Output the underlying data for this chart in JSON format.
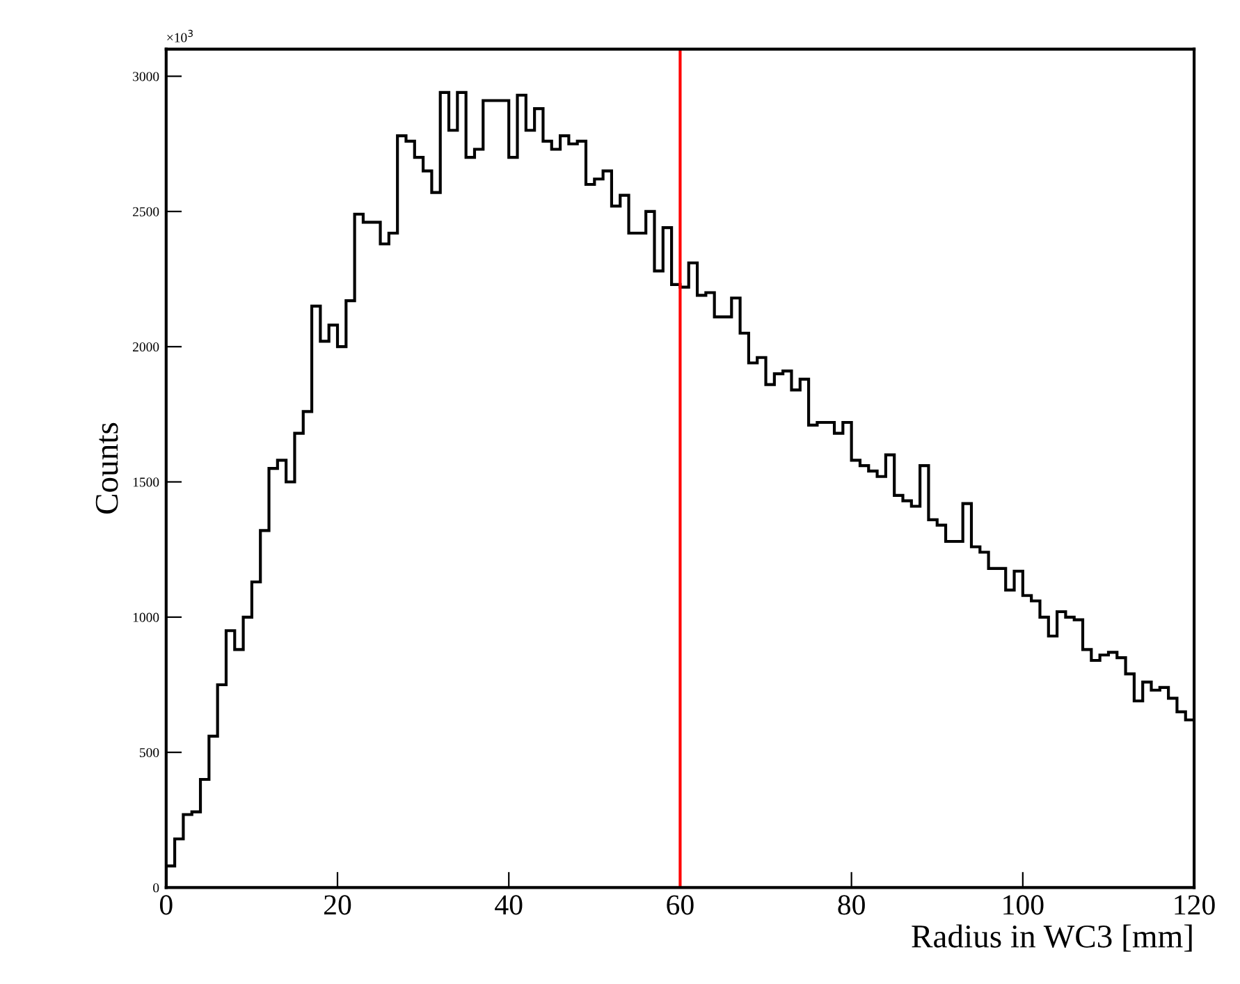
{
  "chart_data": {
    "type": "histogram",
    "xlabel": "Radius in WC3 [mm]",
    "ylabel": "Counts",
    "annotations": [
      "×10$^{3}$"
    ],
    "bins": [
      0,
      1,
      2,
      3,
      4,
      5,
      6,
      7,
      8,
      9,
      10,
      11,
      12,
      13,
      14,
      15,
      16,
      17,
      18,
      19,
      20,
      21,
      22,
      23,
      24,
      25,
      26,
      27,
      28,
      29,
      30,
      31,
      32,
      33,
      34,
      35,
      36,
      37,
      38,
      39,
      40,
      41,
      42,
      43,
      44,
      45,
      46,
      47,
      48,
      49,
      50,
      51,
      52,
      53,
      54,
      55,
      56,
      57,
      58,
      59,
      60,
      61,
      62,
      63,
      64,
      65,
      66,
      67,
      68,
      69,
      70,
      71,
      72,
      73,
      74,
      75,
      76,
      77,
      78,
      79,
      80,
      81,
      82,
      83,
      84,
      85,
      86,
      87,
      88,
      89,
      90,
      91,
      92,
      93,
      94,
      95,
      96,
      97,
      98,
      99,
      100,
      101,
      102,
      103,
      104,
      105,
      106,
      107,
      108,
      109,
      110,
      111,
      112,
      113,
      114,
      115,
      116,
      117,
      118,
      119,
      120
    ],
    "values": [
      80,
      180,
      270,
      280,
      400,
      560,
      750,
      950,
      880,
      1000,
      1130,
      1320,
      1550,
      1580,
      1500,
      1680,
      1760,
      2150,
      2020,
      2080,
      2000,
      2170,
      2490,
      2460,
      2460,
      2380,
      2420,
      2780,
      2760,
      2700,
      2650,
      2570,
      2940,
      2800,
      2940,
      2700,
      2730,
      2910,
      2910,
      2910,
      2700,
      2930,
      2800,
      2880,
      2760,
      2730,
      2780,
      2750,
      2760,
      2600,
      2620,
      2650,
      2520,
      2560,
      2420,
      2420,
      2500,
      2280,
      2440,
      2230,
      2220,
      2310,
      2190,
      2200,
      2110,
      2110,
      2180,
      2050,
      1940,
      1960,
      1860,
      1900,
      1910,
      1840,
      1880,
      1710,
      1720,
      1720,
      1680,
      1720,
      1580,
      1560,
      1540,
      1520,
      1600,
      1450,
      1430,
      1410,
      1560,
      1360,
      1340,
      1280,
      1280,
      1420,
      1260,
      1240,
      1180,
      1180,
      1100,
      1170,
      1080,
      1060,
      1000,
      930,
      1020,
      1000,
      990,
      880,
      840,
      860,
      870,
      850,
      790,
      690,
      760,
      730,
      740,
      700,
      650,
      620
    ],
    "color": "#000000",
    "xlim": [
      0,
      120
    ],
    "ylim": [
      0,
      3100
    ],
    "xticks": [
      0,
      20,
      40,
      60,
      80,
      100,
      120
    ],
    "yticks": [
      0,
      500,
      1000,
      1500,
      2000,
      2500,
      3000
    ],
    "ref_lines": [
      {
        "axis": "x",
        "value": 60,
        "color": "#ff0000"
      }
    ],
    "grid": false,
    "legend": false
  }
}
